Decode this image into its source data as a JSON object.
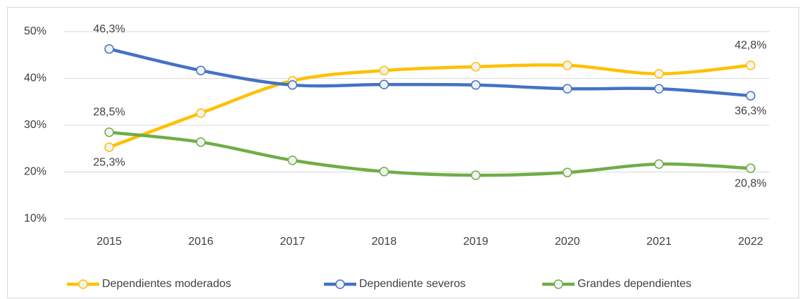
{
  "chart_data": {
    "type": "line",
    "categories": [
      "2015",
      "2016",
      "2017",
      "2018",
      "2019",
      "2020",
      "2021",
      "2022"
    ],
    "series": [
      {
        "name": "Dependientes moderados",
        "color": "#ffc000",
        "values": [
          25.3,
          32.6,
          39.5,
          41.7,
          42.5,
          42.8,
          41.0,
          42.8
        ],
        "value_labels": [
          "25,3%",
          null,
          null,
          null,
          null,
          null,
          null,
          "42,8%"
        ]
      },
      {
        "name": "Dependiente severos",
        "color": "#4472c4",
        "values": [
          46.3,
          41.7,
          38.6,
          38.7,
          38.6,
          37.8,
          37.8,
          36.3
        ],
        "value_labels": [
          "46,3%",
          null,
          null,
          null,
          null,
          null,
          null,
          "36,3%"
        ]
      },
      {
        "name": "Grandes dependientes",
        "color": "#70ad47",
        "values": [
          28.5,
          26.4,
          22.5,
          20.1,
          19.3,
          19.9,
          21.7,
          20.8
        ],
        "value_labels": [
          "28,5%",
          null,
          null,
          null,
          null,
          null,
          null,
          "20,8%"
        ]
      }
    ],
    "ylim": [
      10,
      50
    ],
    "yticks": [
      {
        "value": 10,
        "label": "10%"
      },
      {
        "value": 20,
        "label": "20%"
      },
      {
        "value": 30,
        "label": "30%"
      },
      {
        "value": 40,
        "label": "40%"
      },
      {
        "value": 50,
        "label": "50%"
      }
    ],
    "grid": true,
    "legend": "bottom"
  }
}
